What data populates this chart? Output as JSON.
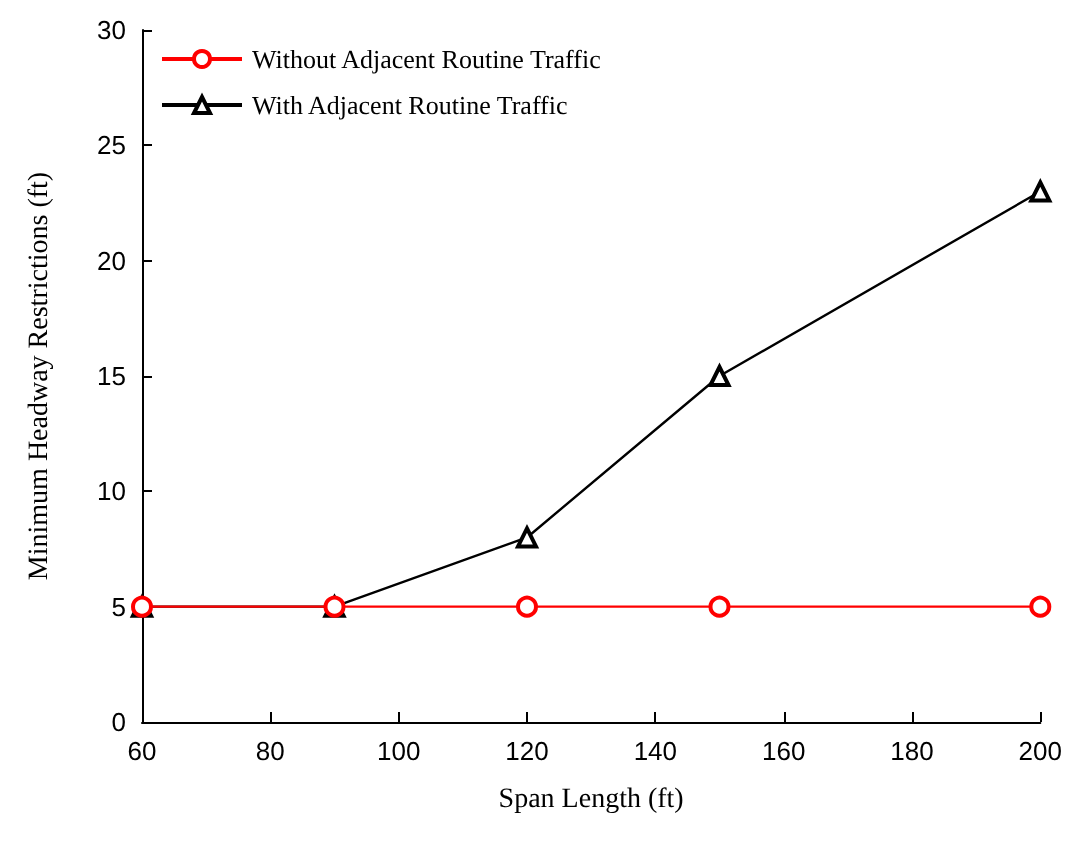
{
  "chart_data": {
    "type": "line",
    "xlabel": "Span Length (ft)",
    "ylabel": "Minimum Headway Restrictions (ft)",
    "x": [
      60,
      90,
      120,
      150,
      200
    ],
    "series": [
      {
        "name": "Without Adjacent Routine Traffic",
        "color": "#ff0000",
        "marker": "circle",
        "values": [
          5,
          5,
          5,
          5,
          5
        ]
      },
      {
        "name": "With Adjacent Routine Traffic",
        "color": "#000000",
        "marker": "triangle",
        "values": [
          5,
          5,
          8,
          15,
          23
        ]
      }
    ],
    "xlim": [
      60,
      200
    ],
    "xticks": [
      60,
      80,
      100,
      120,
      140,
      160,
      180,
      200
    ],
    "ylim": [
      0,
      30
    ],
    "yticks": [
      0,
      5,
      10,
      15,
      20,
      25,
      30
    ],
    "grid": false,
    "legend": "top left",
    "line_style": "solid"
  }
}
